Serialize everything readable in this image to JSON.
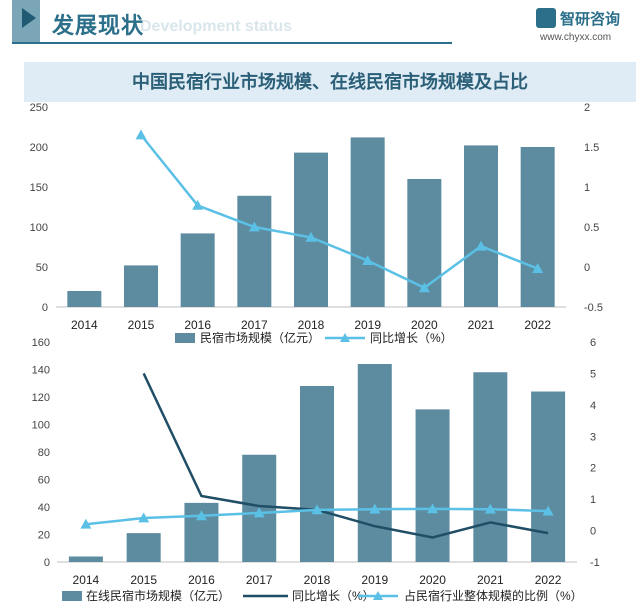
{
  "header": {
    "title": "发展现状",
    "ghost_text": "Development status",
    "logo_name": "智研咨询",
    "logo_url": "www.chyxx.com"
  },
  "chart_title": "中国民宿行业市场规模、在线民宿市场规模及占比",
  "colors": {
    "bar": "#5d8ca0",
    "line_light": "#5bc0e6",
    "line_dark": "#1f4e66",
    "grid": "#d9d9d9"
  },
  "chart_data": [
    {
      "type": "bar+line",
      "categories": [
        "2014",
        "2015",
        "2016",
        "2017",
        "2018",
        "2019",
        "2020",
        "2021",
        "2022"
      ],
      "y_left": {
        "min": 0,
        "max": 250,
        "ticks": [
          0,
          50,
          100,
          150,
          200,
          250
        ]
      },
      "y_right": {
        "min": -0.5,
        "max": 2,
        "ticks": [
          "-0.5",
          "0",
          "0.5",
          "1",
          "1.5",
          "2"
        ]
      },
      "series": [
        {
          "name": "民宿市场规模（亿元）",
          "kind": "bar",
          "axis": "left",
          "values": [
            20,
            52,
            92,
            139,
            193,
            212,
            160,
            202,
            200
          ]
        },
        {
          "name": "同比增长（%）",
          "kind": "line",
          "axis": "right",
          "marker": "triangle",
          "color": "#5bc0e6",
          "values": [
            null,
            1.65,
            0.77,
            0.5,
            0.37,
            0.08,
            -0.26,
            0.26,
            -0.02
          ]
        }
      ]
    },
    {
      "type": "bar+line",
      "categories": [
        "2014",
        "2015",
        "2016",
        "2017",
        "2018",
        "2019",
        "2020",
        "2021",
        "2022"
      ],
      "y_left": {
        "min": 0,
        "max": 160,
        "ticks": [
          0,
          20,
          40,
          60,
          80,
          100,
          120,
          140,
          160
        ]
      },
      "y_right": {
        "min": -1,
        "max": 6,
        "ticks": [
          "-1",
          "0",
          "1",
          "2",
          "3",
          "4",
          "5",
          "6"
        ]
      },
      "series": [
        {
          "name": "在线民宿市场规模（亿元）",
          "kind": "bar",
          "axis": "left",
          "values": [
            4,
            21,
            43,
            78,
            128,
            144,
            111,
            138,
            124
          ]
        },
        {
          "name": "同比增长（%）",
          "kind": "line",
          "axis": "right",
          "marker": "none",
          "color": "#1f4e66",
          "values": [
            null,
            5.0,
            1.1,
            0.78,
            0.66,
            0.14,
            -0.22,
            0.26,
            -0.08
          ]
        },
        {
          "name": "占民宿行业整体规模的比例（%）",
          "kind": "line",
          "axis": "right",
          "marker": "triangle",
          "color": "#5bc0e6",
          "values": [
            0.2,
            0.4,
            0.47,
            0.56,
            0.66,
            0.68,
            0.69,
            0.68,
            0.62
          ]
        }
      ]
    }
  ]
}
